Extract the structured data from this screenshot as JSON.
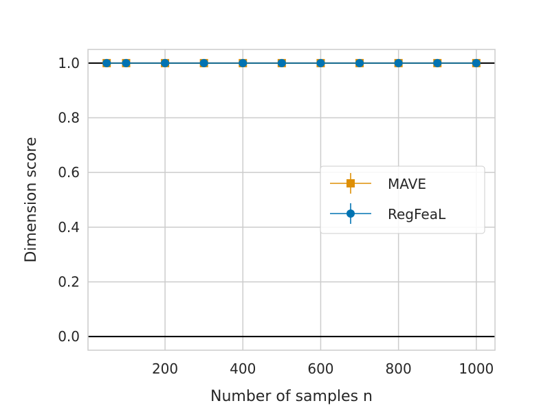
{
  "chart_data": {
    "type": "line",
    "xlabel": "Number of samples n",
    "ylabel": "Dimension score",
    "xlim": [
      2,
      1048
    ],
    "ylim": [
      -0.05,
      1.05
    ],
    "x": [
      50,
      100,
      200,
      300,
      400,
      500,
      600,
      700,
      800,
      900,
      1000
    ],
    "xticks": [
      200,
      400,
      600,
      800,
      1000
    ],
    "xtick_labels": [
      "200",
      "400",
      "600",
      "800",
      "1000"
    ],
    "yticks": [
      0.0,
      0.2,
      0.4,
      0.6,
      0.8,
      1.0
    ],
    "ytick_labels": [
      "0.0",
      "0.2",
      "0.4",
      "0.6",
      "0.8",
      "1.0"
    ],
    "reference_lines": [
      0.0,
      1.0
    ],
    "grid": true,
    "legend_position": "center-right",
    "series": [
      {
        "name": "MAVE",
        "marker": "square",
        "color": "#de8f05",
        "values": [
          1.0,
          1.0,
          1.0,
          1.0,
          1.0,
          1.0,
          1.0,
          1.0,
          1.0,
          1.0,
          1.0
        ]
      },
      {
        "name": "RegFeaL",
        "marker": "circle",
        "color": "#0173b2",
        "values": [
          1.0,
          1.0,
          1.0,
          1.0,
          1.0,
          1.0,
          1.0,
          1.0,
          1.0,
          1.0,
          1.0
        ]
      }
    ]
  }
}
